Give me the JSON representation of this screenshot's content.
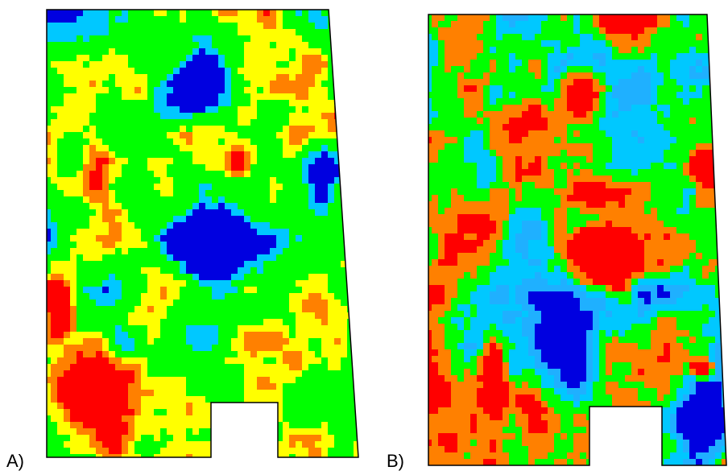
{
  "panels": [
    {
      "label": "A)"
    },
    {
      "label": "B)"
    }
  ],
  "palette": {
    "red": "#ff0000",
    "orange": "#ff8000",
    "yellow": "#ffff00",
    "green": "#00ff00",
    "cyan": "#00c8ff",
    "lightblue": "#1fb0ff",
    "blue": "#0000e0",
    "outline": "#000000"
  }
}
